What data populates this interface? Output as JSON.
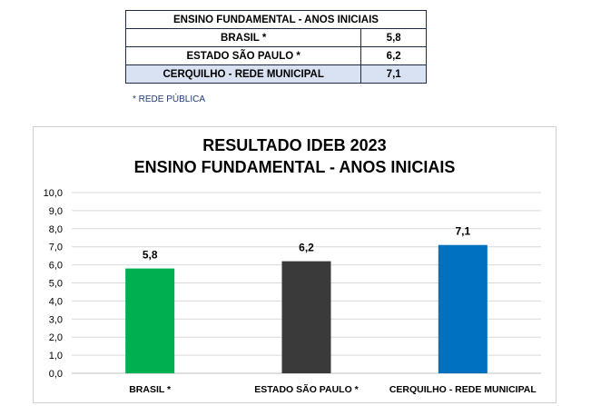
{
  "table": {
    "header": "ENSINO FUNDAMENTAL - ANOS INICIAIS",
    "rows": [
      {
        "label": "BRASIL *",
        "value": "5,8"
      },
      {
        "label": "ESTADO SÃO PAULO *",
        "value": "6,2"
      },
      {
        "label": "CERQUILHO - REDE MUNICIPAL",
        "value": "7,1"
      }
    ],
    "footnote": "* REDE PÚBLICA",
    "highlight_color": "#d9e2f3"
  },
  "chart_data": {
    "type": "bar",
    "title": "RESULTADO IDEB 2023",
    "subtitle": "ENSINO FUNDAMENTAL - ANOS INICIAIS",
    "categories": [
      "BRASIL *",
      "ESTADO SÃO PAULO *",
      "CERQUILHO - REDE MUNICIPAL"
    ],
    "values": [
      5.8,
      6.2,
      7.1
    ],
    "data_labels": [
      "5,8",
      "6,2",
      "7,1"
    ],
    "colors": [
      "#00b050",
      "#3a3a3a",
      "#0070c0"
    ],
    "ylim": [
      0,
      10
    ],
    "yticks": [
      "0,0",
      "1,0",
      "2,0",
      "3,0",
      "4,0",
      "5,0",
      "6,0",
      "7,0",
      "8,0",
      "9,0",
      "10,0"
    ],
    "grid": true,
    "xlabel": "",
    "ylabel": ""
  }
}
